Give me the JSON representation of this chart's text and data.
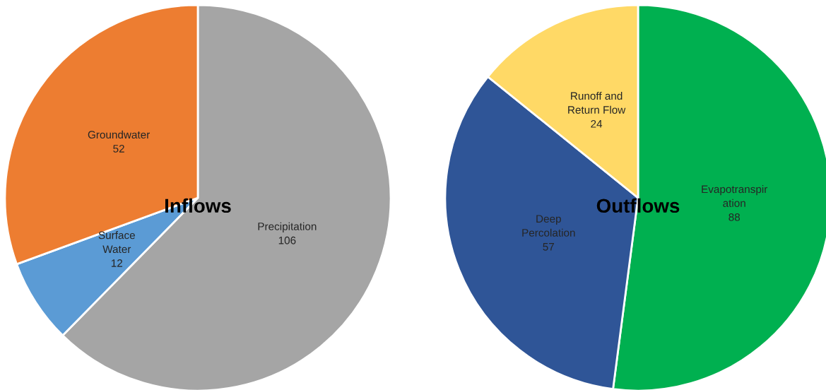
{
  "chart_data": [
    {
      "type": "pie",
      "title": "Inflows",
      "categories": [
        "Precipitation",
        "Surface\nWater",
        "Groundwater"
      ],
      "values": [
        106,
        12,
        52
      ],
      "colors": [
        "#a5a5a5",
        "#5b9bd5",
        "#ed7d31"
      ],
      "data_labels": true
    },
    {
      "type": "pie",
      "title": "Outflows",
      "categories": [
        "Evapotranspir\nation",
        "Deep\nPercolation",
        "Runoff and\nReturn Flow"
      ],
      "values": [
        88,
        57,
        24
      ],
      "colors": [
        "#00b050",
        "#2f5597",
        "#ffd966"
      ],
      "data_labels": true
    }
  ]
}
